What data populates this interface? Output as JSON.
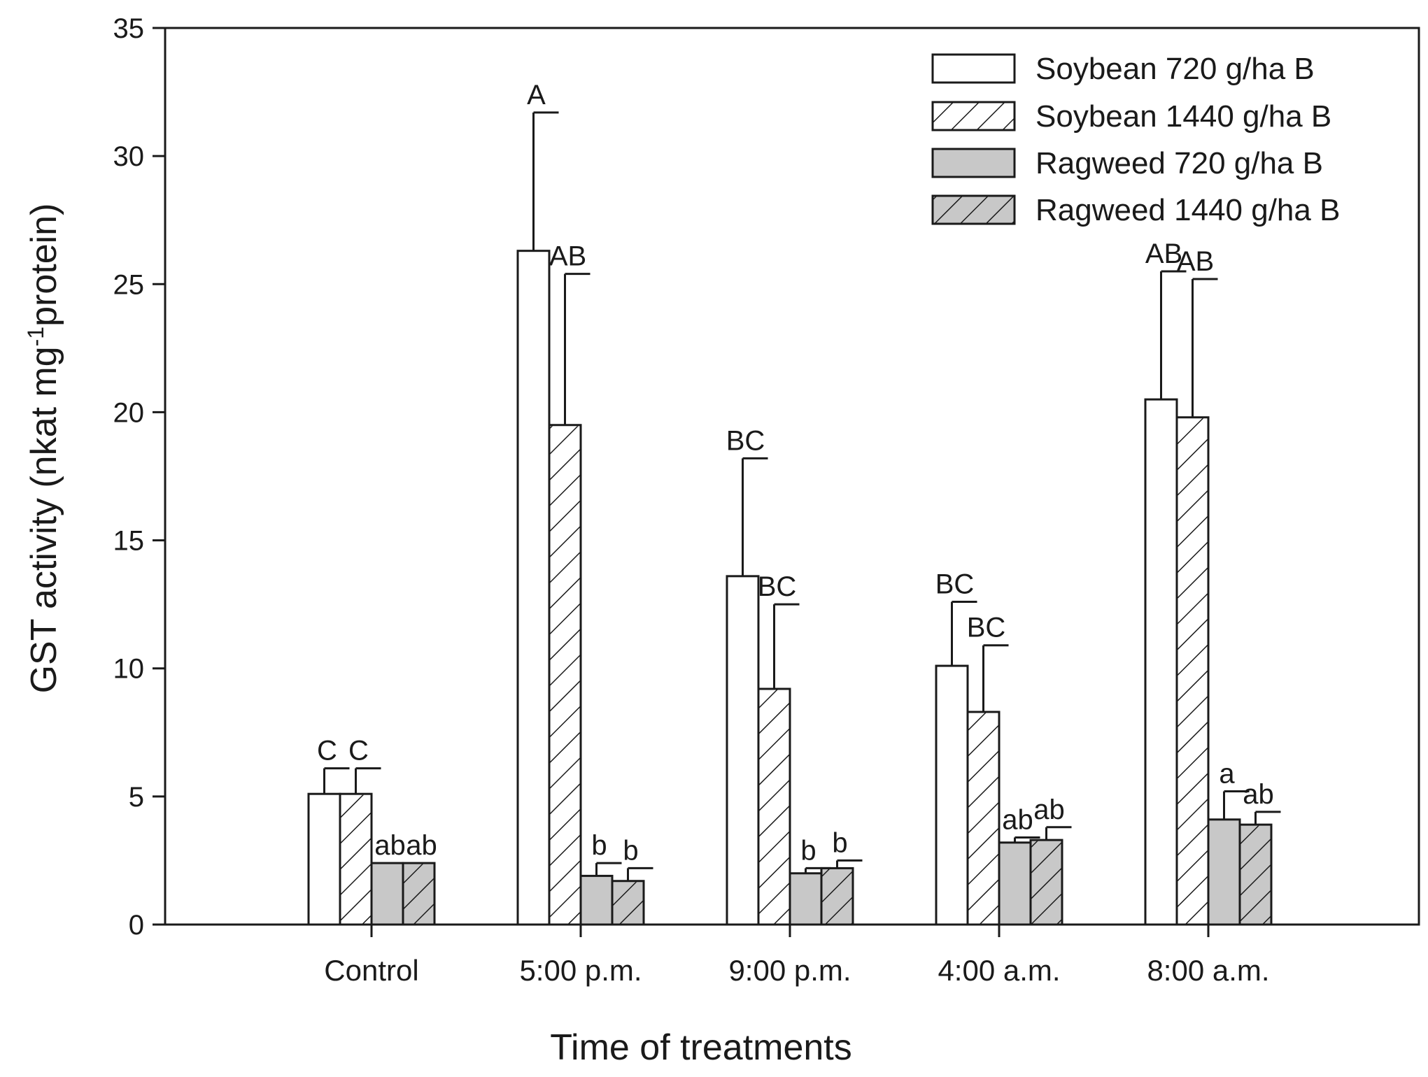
{
  "chart_data": {
    "type": "bar",
    "title": "",
    "xlabel": "Time of treatments",
    "ylabel": {
      "main": "GST activity (nkat mg",
      "superscript": "-1",
      "tail": "protein)"
    },
    "ylim": [
      0,
      35
    ],
    "yticks": [
      "0",
      "5",
      "10",
      "15",
      "20",
      "25",
      "30",
      "35"
    ],
    "grid": false,
    "legend_position": "top-right",
    "categories": [
      "Control",
      "5:00 p.m.",
      "9:00 p.m.",
      "4:00 a.m.",
      "8:00 a.m."
    ],
    "series": [
      {
        "name": "Soybean 720 g/ha B",
        "fill": "#ffffff",
        "hatch": false,
        "values": [
          5.1,
          26.3,
          13.6,
          10.1,
          20.5
        ],
        "errors": [
          1.0,
          5.4,
          4.6,
          2.5,
          5.0
        ],
        "labels": [
          "C",
          "A",
          "BC",
          "BC",
          "AB"
        ]
      },
      {
        "name": "Soybean 1440 g/ha B",
        "fill": "#ffffff",
        "hatch": true,
        "values": [
          5.1,
          19.5,
          9.2,
          8.3,
          19.8
        ],
        "errors": [
          1.0,
          5.9,
          3.3,
          2.6,
          5.4
        ],
        "labels": [
          "C",
          "AB",
          "BC",
          "BC",
          "AB"
        ]
      },
      {
        "name": "Ragweed 720 g/ha B",
        "fill": "#c8c8c8",
        "hatch": false,
        "values": [
          2.4,
          1.9,
          2.0,
          3.2,
          4.1
        ],
        "errors": [
          0.0,
          0.5,
          0.2,
          0.2,
          1.1
        ],
        "labels": [
          "ab",
          "b",
          "b",
          "ab",
          "a"
        ]
      },
      {
        "name": "Ragweed 1440 g/ha B",
        "fill": "#c8c8c8",
        "hatch": true,
        "values": [
          2.4,
          1.7,
          2.2,
          3.3,
          3.9
        ],
        "errors": [
          0.0,
          0.5,
          0.3,
          0.5,
          0.5
        ],
        "labels": [
          "ab",
          "b",
          "b",
          "ab",
          "ab"
        ]
      }
    ]
  },
  "colors": {
    "axis": "#1a1a1a",
    "soybean_fill": "#ffffff",
    "ragweed_fill": "#c8c8c8"
  }
}
